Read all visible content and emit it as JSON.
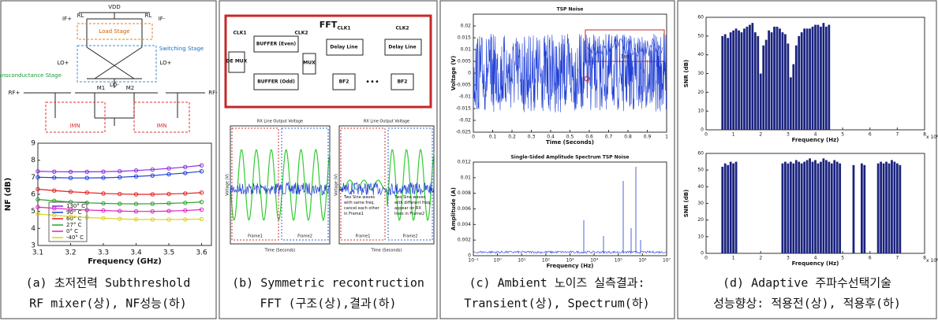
{
  "a": {
    "caption": [
      "(a) 초저전력 Subthreshold",
      "RF mixer(상), NF성능(하)"
    ],
    "circuit": [
      "VDD",
      "Load Stage",
      "Switching Stage",
      "Transconductance Stage",
      "IF+",
      "IF-",
      "LO+",
      "LO+",
      "LO-",
      "RF+",
      "RF-",
      "IMN",
      "IMN",
      "M1",
      "M2",
      "RL",
      "RL"
    ],
    "chart": {
      "type": "line",
      "xlabel": "Frequency (GHz)",
      "ylabel": "NF (dB)",
      "x": [
        3.1,
        3.15,
        3.2,
        3.25,
        3.3,
        3.35,
        3.4,
        3.45,
        3.5,
        3.55,
        3.6
      ],
      "xlim": [
        3.1,
        3.63
      ],
      "xticks": [
        3.1,
        3.2,
        3.3,
        3.4,
        3.5,
        3.6
      ],
      "ylim": [
        3,
        9
      ],
      "yticks": [
        3,
        4,
        5,
        6,
        7,
        8,
        9
      ],
      "legend": "lower left",
      "series": [
        {
          "name": "130° C",
          "color": "#8a2be2",
          "values": [
            7.35,
            7.33,
            7.32,
            7.32,
            7.33,
            7.35,
            7.4,
            7.45,
            7.52,
            7.6,
            7.7
          ]
        },
        {
          "name": "90° C",
          "color": "#1f3fd6",
          "values": [
            7.0,
            6.98,
            6.96,
            6.96,
            6.97,
            7.0,
            7.05,
            7.1,
            7.18,
            7.25,
            7.35
          ]
        },
        {
          "name": "60° C",
          "color": "#e02020",
          "values": [
            6.3,
            6.22,
            6.15,
            6.1,
            6.05,
            6.02,
            6.0,
            6.0,
            6.02,
            6.05,
            6.1
          ]
        },
        {
          "name": "27° C",
          "color": "#2aa02a",
          "values": [
            5.7,
            5.62,
            5.55,
            5.5,
            5.47,
            5.45,
            5.44,
            5.45,
            5.47,
            5.5,
            5.55
          ]
        },
        {
          "name": "0° C",
          "color": "#e020c0",
          "values": [
            5.25,
            5.18,
            5.12,
            5.08,
            5.05,
            5.02,
            5.0,
            5.0,
            5.02,
            5.05,
            5.1
          ]
        },
        {
          "name": "-40° C",
          "color": "#d8d020",
          "values": [
            4.85,
            4.77,
            4.7,
            4.64,
            4.6,
            4.56,
            4.53,
            4.52,
            4.52,
            4.53,
            4.55
          ]
        }
      ]
    }
  },
  "b": {
    "caption": [
      "(b) Symmetric recontruction",
      "FFT (구조(상),결과(하)"
    ],
    "blocks": [
      "FFT",
      "DE MUX",
      "BUFFER (Even)",
      "BUFFER (Odd)",
      "MUX",
      "Delay Line",
      "Delay Line",
      "BF2",
      "BF2",
      "CLK1",
      "CLK2",
      "CLK1",
      "CLK2"
    ],
    "plots": {
      "title": "RX Line Output Voltage",
      "frames": [
        "Frame1",
        "Frame2",
        "Frame1",
        "Frame2"
      ],
      "xlabel": "Time (Seconds)",
      "ylabel": "Voltage (V)",
      "notes": [
        "Two Sine waves with same freq. cancel each other in Frame1",
        "Two Sine waves with different freq. appear on RX lines in Frame2"
      ]
    }
  },
  "c": {
    "caption": [
      "(c) Ambient 노이즈 실측결과:",
      "Transient(상), Spectrum(하)"
    ],
    "top": {
      "title": "TSP Noise",
      "xlabel": "Time (Seconds)",
      "ylabel": "Voltage (V)",
      "inset": "1us",
      "xlim": [
        0,
        1
      ],
      "xticks": [
        0,
        0.1,
        0.2,
        0.3,
        0.4,
        0.5,
        0.6,
        0.7,
        0.8,
        0.9,
        1
      ],
      "ylim": [
        -0.025,
        0.025
      ],
      "yticks": [
        -0.025,
        -0.02,
        -0.015,
        -0.01,
        -0.005,
        0,
        0.005,
        0.01,
        0.015,
        0.02
      ]
    },
    "bottom": {
      "title": "Single-Sided Amplitude Spectrum TSP Noise",
      "xlabel": "Frequency (Hz)",
      "ylabel": "Amplitude (A)",
      "xlog": true,
      "xlim": [
        0.1,
        10000000
      ],
      "xticks": [
        {
          "value": 0.1,
          "label": "10⁻¹"
        },
        {
          "value": 1,
          "label": "10⁰"
        },
        {
          "value": 10,
          "label": "10¹"
        },
        {
          "value": 100,
          "label": "10²"
        },
        {
          "value": 1000,
          "label": "10³"
        },
        {
          "value": 10000,
          "label": "10⁴"
        },
        {
          "value": 100000,
          "label": "10⁵"
        },
        {
          "value": 1000000,
          "label": "10⁶"
        },
        {
          "value": 10000000,
          "label": "10⁷"
        }
      ],
      "ylim": [
        0,
        0.012
      ],
      "yticks": [
        0,
        0.002,
        0.004,
        0.006,
        0.008,
        0.01,
        0.012
      ]
    }
  },
  "d": {
    "caption": [
      "(d) Adaptive 주파수선택기술",
      "성능향상: 적용전(상), 적용후(하)"
    ],
    "top": {
      "type": "bar",
      "xlabel": "Frequency (Hz)",
      "ylabel": "SNR (dB)",
      "xscale": "x 10⁵",
      "color": "#1a237e",
      "xlim": [
        0,
        8
      ],
      "xticks": [
        0,
        1,
        2,
        3,
        4,
        5,
        6,
        7,
        8
      ],
      "ylim": [
        0,
        60
      ],
      "yticks": [
        0,
        10,
        20,
        30,
        40,
        50,
        60
      ],
      "x": [
        0.6,
        0.7,
        0.8,
        0.9,
        1.0,
        1.1,
        1.2,
        1.3,
        1.4,
        1.5,
        1.6,
        1.7,
        1.8,
        1.9,
        2.0,
        2.1,
        2.2,
        2.3,
        2.4,
        2.5,
        2.6,
        2.7,
        2.8,
        2.9,
        3.0,
        3.1,
        3.2,
        3.3,
        3.4,
        3.5,
        3.6,
        3.7,
        3.8,
        3.9,
        4.0,
        4.1,
        4.2,
        4.3,
        4.4,
        4.5
      ],
      "values": [
        50,
        51,
        49,
        52,
        53,
        54,
        53,
        52,
        54,
        55,
        56,
        57,
        52,
        50,
        30,
        45,
        48,
        53,
        52,
        55,
        55,
        54,
        52,
        51,
        46,
        28,
        35,
        45,
        50,
        52,
        54,
        54,
        54,
        55,
        56,
        56,
        55,
        57,
        55,
        56
      ]
    },
    "bottom": {
      "type": "bar",
      "xlabel": "Frequency (Hz)",
      "ylabel": "SNR (dB)",
      "xscale": "x 10⁵",
      "color": "#1a237e",
      "xlim": [
        0,
        8
      ],
      "xticks": [
        0,
        1,
        2,
        3,
        4,
        5,
        6,
        7,
        8
      ],
      "ylim": [
        0,
        60
      ],
      "yticks": [
        0,
        10,
        20,
        30,
        40,
        50,
        60
      ],
      "x": [
        0.6,
        0.7,
        0.8,
        0.9,
        1.0,
        1.1,
        2.8,
        2.9,
        3.0,
        3.1,
        3.2,
        3.3,
        3.4,
        3.5,
        3.6,
        3.7,
        3.8,
        3.9,
        4.0,
        4.1,
        4.2,
        4.3,
        4.4,
        4.5,
        4.6,
        4.7,
        4.8,
        4.9,
        5.4,
        5.7,
        5.8,
        6.3,
        6.4,
        6.5,
        6.6,
        6.7,
        6.8,
        6.9,
        7.0,
        7.1
      ],
      "values": [
        52,
        54,
        53,
        55,
        54,
        55,
        54,
        55,
        54,
        55,
        54,
        56,
        55,
        54,
        55,
        56,
        57,
        55,
        56,
        54,
        55,
        57,
        56,
        55,
        54,
        56,
        55,
        54,
        53,
        54,
        53,
        54,
        55,
        54,
        55,
        54,
        56,
        55,
        54,
        53
      ]
    }
  }
}
